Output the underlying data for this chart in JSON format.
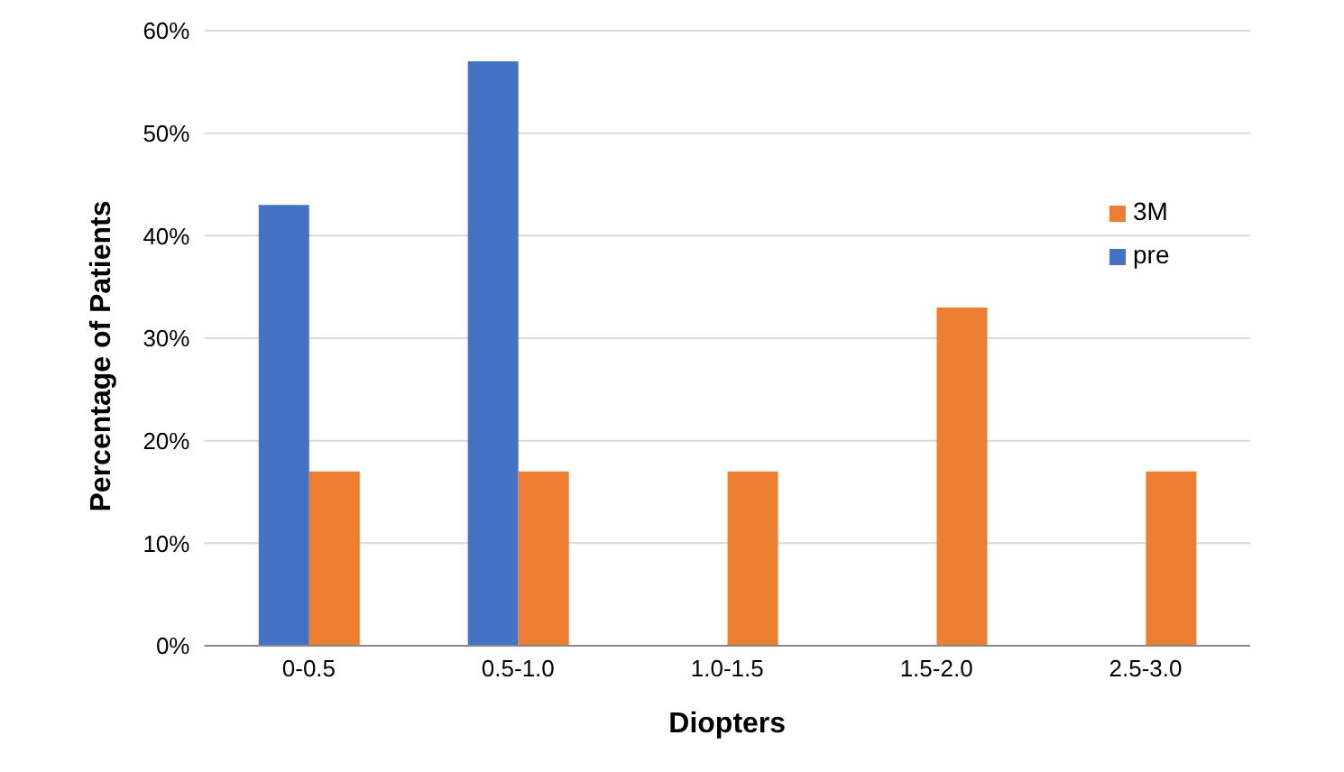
{
  "chart_data": {
    "type": "bar",
    "xlabel": "Diopters",
    "ylabel": "Percentage of Patients",
    "categories": [
      "0-0.5",
      "0.5-1.0",
      "1.0-1.5",
      "1.5-2.0",
      "2.5-3.0"
    ],
    "series": [
      {
        "name": "pre",
        "color": "#4472c4",
        "values": [
          43,
          57,
          0,
          0,
          0
        ]
      },
      {
        "name": "3M",
        "color": "#ed7d31",
        "values": [
          17,
          17,
          17,
          33,
          17
        ]
      }
    ],
    "ylim": [
      0,
      60
    ],
    "yticks": [
      {
        "value": 0,
        "label": "0%"
      },
      {
        "value": 10,
        "label": "10%"
      },
      {
        "value": 20,
        "label": "20%"
      },
      {
        "value": 30,
        "label": "30%"
      },
      {
        "value": 40,
        "label": "40%"
      },
      {
        "value": 50,
        "label": "50%"
      },
      {
        "value": 60,
        "label": "60%"
      }
    ],
    "grid": "y",
    "legend": "right"
  }
}
